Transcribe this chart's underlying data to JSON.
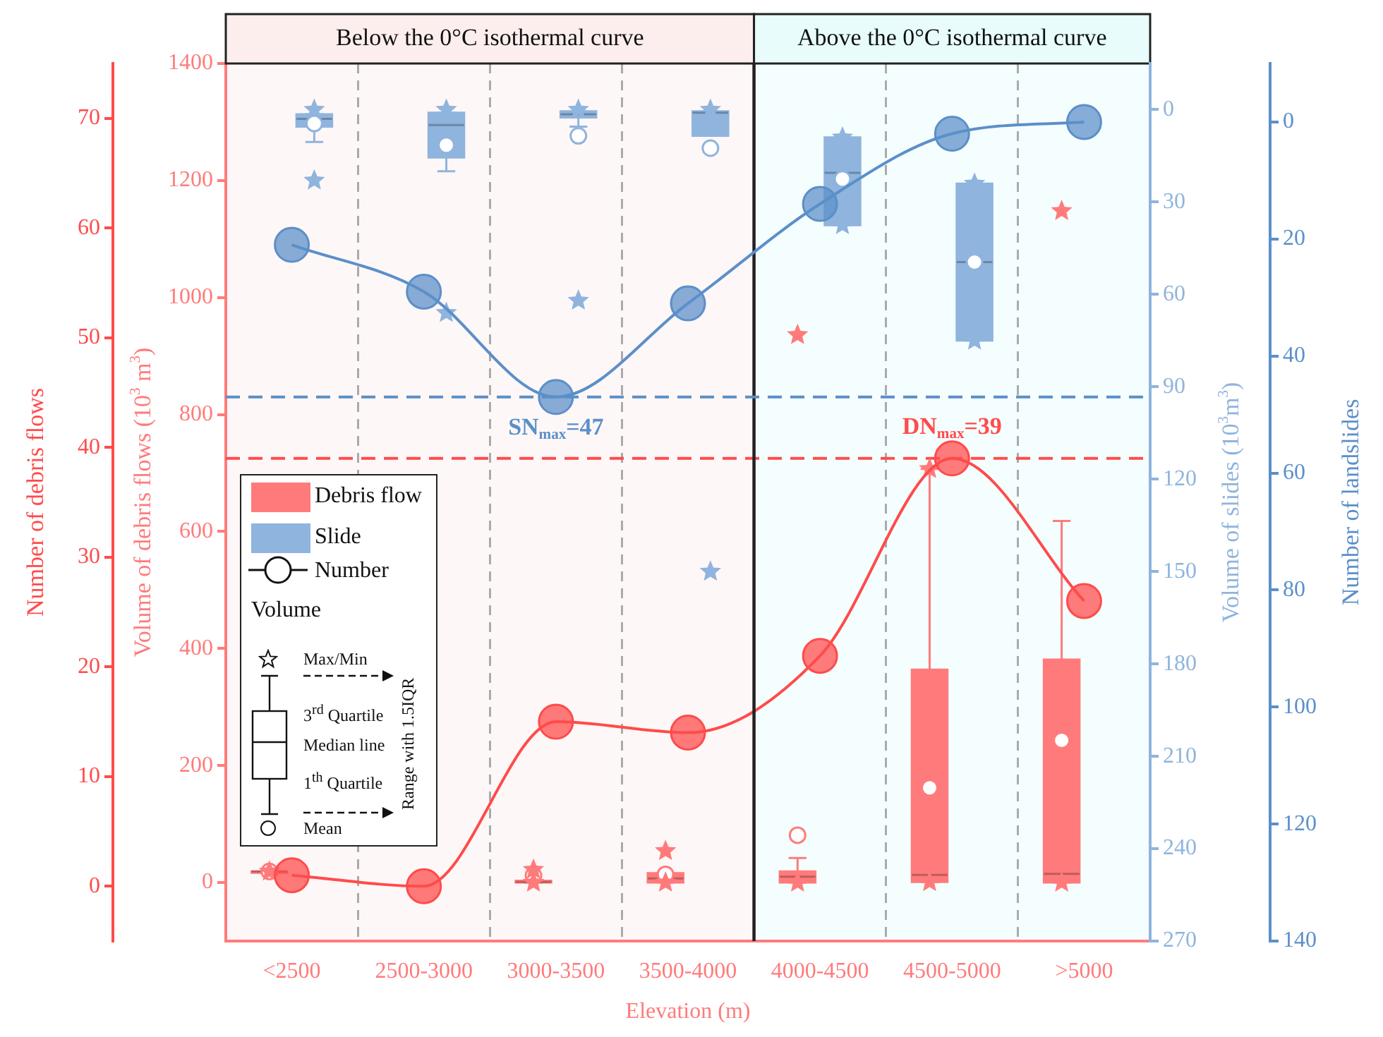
{
  "chart_data": [
    {
      "type": "box",
      "categories": [
        "<2500",
        "2500-3000",
        "3000-3500",
        "3500-4000",
        "4000-4500",
        "4500-5000",
        ">5000"
      ],
      "series": [
        {
          "name": "Debris flow",
          "color": "#ff7b7b",
          "boxes": [
            {
              "low": 19,
              "q1": 19,
              "median": 19,
              "q3": 19,
              "high": 19,
              "mean": 19,
              "outliers": [
                19
              ]
            },
            null,
            {
              "low": 0,
              "q1": 0,
              "median": 1,
              "q3": 3,
              "high": 3,
              "mean": 12,
              "outliers": [
                22,
                0
              ]
            },
            {
              "low": 0,
              "q1": 0,
              "median": 7,
              "q3": 16,
              "high": 16,
              "mean": 14,
              "outliers": [
                54,
                0
              ]
            },
            {
              "low": 0,
              "q1": 0,
              "median": 10,
              "q3": 19,
              "high": 42,
              "mean": 81,
              "outliers": [
                936,
                0
              ]
            },
            {
              "low": 1,
              "q1": 1,
              "median": 13,
              "q3": 364,
              "high": 707,
              "mean": 162,
              "outliers": [
                707,
                1
              ]
            },
            {
              "low": 0,
              "q1": 0,
              "median": 15,
              "q3": 381,
              "high": 618,
              "mean": 243,
              "outliers": [
                1148,
                0
              ]
            }
          ]
        },
        {
          "type": "line",
          "color": "#ff4b4b",
          "axis": "y2",
          "values": [
            1,
            0,
            15,
            14,
            21,
            39,
            26
          ]
        }
      ],
      "xlabel": "Elevation (m)",
      "ylabel": "Volume of debris flows (10$^{3}$ m$^{3}$)",
      "ylim": [
        -100,
        1400
      ],
      "yticks": [
        0,
        200,
        400,
        600,
        800,
        1000,
        1200,
        1400
      ],
      "y2label": "Number of debris flows",
      "y2lim": [
        -5,
        75
      ],
      "y2ticks": [
        0,
        10,
        20,
        30,
        40,
        50,
        60,
        70
      ],
      "ref_lines": [
        {
          "axis": "y2",
          "value": 39,
          "label": "DN$_{max}$=39",
          "color": "#ff4b4b",
          "line_style": "dashed"
        }
      ],
      "bands": [
        {
          "axis": "x",
          "from": "<2500",
          "to": "3500-4000",
          "label": "Below the 0°C isothermal curve",
          "color": "#fdeeee"
        },
        {
          "axis": "x",
          "from": "4000-4500",
          "to": ">5000",
          "label": "Above the 0°C isothermal curve",
          "color": "#e8fcfc"
        }
      ],
      "annotations": [
        "Number",
        "Volume",
        "Max/Min",
        "3$^{rd}$ Quartile",
        "Median line",
        "1$^{th}$ Quartile",
        "Mean",
        "Range with 1.5IQR"
      ],
      "grid": "x",
      "legend": "left",
      "marker": "circle",
      "line_style": "solid"
    },
    {
      "type": "box",
      "categories": [
        null,
        null,
        null,
        null,
        null,
        null,
        null
      ],
      "series": [
        {
          "name": "Slide",
          "color": "#8fb4dd",
          "boxes": [
            {
              "low": 1.5,
              "q1": 1.5,
              "median": 3,
              "q3": 5.5,
              "high": 10.5,
              "mean": 4.5,
              "outliers": [
                0,
                23
              ]
            },
            {
              "low": 1,
              "q1": 1,
              "median": 5,
              "q3": 15.5,
              "high": 20,
              "mean": 11.5,
              "outliers": [
                0,
                66
              ]
            },
            {
              "low": 0.5,
              "q1": 0.5,
              "median": 1.5,
              "q3": 2.5,
              "high": 5.5,
              "mean": 8.5,
              "outliers": [
                0,
                62
              ]
            },
            {
              "low": 0.5,
              "q1": 0.5,
              "median": 1,
              "q3": 8.5,
              "high": 8.5,
              "mean": 12.5,
              "outliers": [
                0,
                150
              ]
            },
            {
              "low": 9,
              "q1": 9,
              "median": 20.5,
              "q3": 37.5,
              "high": 37.5,
              "mean": 22.5,
              "outliers": [
                9,
                37.5
              ]
            },
            {
              "low": 24,
              "q1": 24,
              "median": 49.5,
              "q3": 75,
              "high": 75,
              "mean": 49.5,
              "outliers": [
                24,
                75
              ]
            },
            null
          ]
        },
        {
          "type": "line",
          "color": "#5b8fc9",
          "axis": "y2",
          "values": [
            21,
            29,
            47,
            31,
            14,
            2,
            0
          ]
        }
      ],
      "ylabel": "Volume of slides (10$^{3}$m$^{3}$)",
      "ylim": [
        270,
        -15
      ],
      "yticks": [
        0,
        30,
        60,
        90,
        120,
        150,
        180,
        210,
        240,
        270
      ],
      "y2label": "Number of landslides",
      "y2lim": [
        140,
        -10
      ],
      "y2ticks": [
        0,
        20,
        40,
        60,
        80,
        100,
        120,
        140
      ],
      "ref_lines": [
        {
          "axis": "y2",
          "value": 47,
          "label": "SN$_{max}$=47",
          "color": "#5b8fc9",
          "line_style": "dashed"
        }
      ],
      "tick_labels": "y",
      "marker": "circle",
      "line_style": "solid"
    }
  ]
}
